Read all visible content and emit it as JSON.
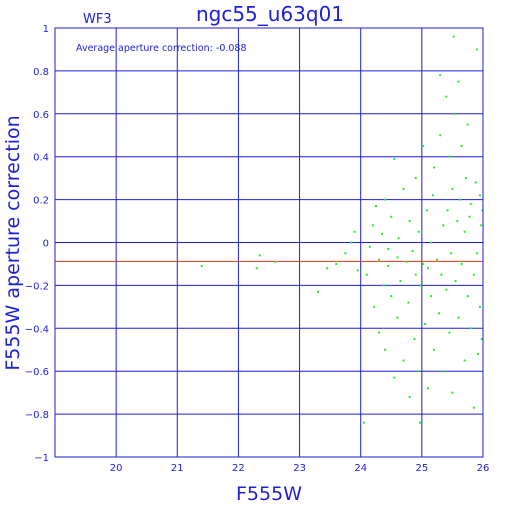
{
  "chart_data": {
    "type": "scatter",
    "title": "ngc55_u63q01",
    "corner_label": "WF3",
    "annotation": "Average aperture correction: -0.088",
    "xlabel": "F555W",
    "ylabel": "F555W aperture correction",
    "xlim": [
      19,
      26
    ],
    "ylim": [
      -1,
      1
    ],
    "x_ticks": [
      20,
      21,
      22,
      23,
      24,
      25,
      26
    ],
    "y_ticks": [
      1,
      0.8,
      0.6,
      0.4,
      0.2,
      0,
      -0.2,
      -0.4,
      -0.6,
      -0.8,
      -1
    ],
    "x_tick_labels": [
      "20",
      "21",
      "22",
      "23",
      "24",
      "25",
      "26"
    ],
    "y_tick_labels": [
      "1",
      "0.8",
      "0.6",
      "0.4",
      "0.2",
      "0",
      "−0.2",
      "−0.4",
      "−0.6",
      "−0.8",
      "−1"
    ],
    "grid": true,
    "reference_line": {
      "y": -0.088
    },
    "series": [
      {
        "points": [
          [
            21.4,
            -0.11
          ],
          [
            22.35,
            -0.06
          ],
          [
            22.6,
            -0.09
          ],
          [
            22.3,
            -0.12
          ],
          [
            23.3,
            -0.23
          ],
          [
            23.45,
            -0.12
          ],
          [
            23.6,
            -0.1
          ],
          [
            23.75,
            -0.05
          ],
          [
            23.85,
            0.0
          ],
          [
            23.95,
            -0.13
          ],
          [
            23.9,
            0.05
          ],
          [
            24.05,
            -0.84
          ],
          [
            24.1,
            -0.15
          ],
          [
            24.15,
            -0.02
          ],
          [
            24.2,
            0.08
          ],
          [
            24.22,
            -0.3
          ],
          [
            24.25,
            0.17
          ],
          [
            24.3,
            -0.42
          ],
          [
            24.3,
            -0.08
          ],
          [
            24.35,
            0.04
          ],
          [
            24.38,
            -0.2
          ],
          [
            24.4,
            -0.5
          ],
          [
            24.4,
            0.2
          ],
          [
            24.45,
            -0.11
          ],
          [
            24.45,
            -0.03
          ],
          [
            24.5,
            0.12
          ],
          [
            24.5,
            -0.25
          ],
          [
            24.55,
            -0.63
          ],
          [
            24.55,
            0.39
          ],
          [
            24.6,
            -0.07
          ],
          [
            24.6,
            -0.35
          ],
          [
            24.62,
            0.02
          ],
          [
            24.65,
            -0.18
          ],
          [
            24.7,
            0.25
          ],
          [
            24.7,
            -0.55
          ],
          [
            24.75,
            -0.09
          ],
          [
            24.78,
            -0.28
          ],
          [
            24.8,
            0.1
          ],
          [
            24.8,
            -0.72
          ],
          [
            24.85,
            -0.04
          ],
          [
            24.88,
            -0.45
          ],
          [
            24.9,
            0.3
          ],
          [
            24.9,
            -0.15
          ],
          [
            24.95,
            -0.6
          ],
          [
            24.95,
            0.05
          ],
          [
            24.97,
            -0.84
          ],
          [
            24.98,
            -0.2
          ],
          [
            25.02,
            0.45
          ],
          [
            25.02,
            -0.1
          ],
          [
            25.05,
            -0.38
          ],
          [
            25.08,
            0.15
          ],
          [
            25.1,
            -0.12
          ],
          [
            25.1,
            -0.68
          ],
          [
            25.15,
            0.0
          ],
          [
            25.15,
            -0.25
          ],
          [
            25.18,
            0.22
          ],
          [
            25.2,
            -0.5
          ],
          [
            25.2,
            0.35
          ],
          [
            25.25,
            -0.08
          ],
          [
            25.28,
            -0.33
          ],
          [
            25.3,
            0.5
          ],
          [
            25.3,
            0.78
          ],
          [
            25.32,
            -0.15
          ],
          [
            25.35,
            0.08
          ],
          [
            25.35,
            -0.6
          ],
          [
            25.4,
            0.68
          ],
          [
            25.4,
            -0.22
          ],
          [
            25.42,
            0.15
          ],
          [
            25.45,
            0.4
          ],
          [
            25.45,
            -0.42
          ],
          [
            25.48,
            -0.05
          ],
          [
            25.5,
            0.25
          ],
          [
            25.5,
            -0.7
          ],
          [
            25.52,
            0.96
          ],
          [
            25.55,
            -0.18
          ],
          [
            25.55,
            0.6
          ],
          [
            25.58,
            0.1
          ],
          [
            25.6,
            0.75
          ],
          [
            25.6,
            -0.35
          ],
          [
            25.62,
            0.2
          ],
          [
            25.65,
            -0.1
          ],
          [
            25.65,
            0.45
          ],
          [
            25.7,
            -0.55
          ],
          [
            25.7,
            0.05
          ],
          [
            25.72,
            0.3
          ],
          [
            25.75,
            -0.25
          ],
          [
            25.75,
            0.55
          ],
          [
            25.78,
            0.12
          ],
          [
            25.8,
            -0.4
          ],
          [
            25.8,
            0.18
          ],
          [
            25.85,
            -0.15
          ],
          [
            25.85,
            -0.77
          ],
          [
            25.88,
            0.28
          ],
          [
            25.9,
            0.9
          ],
          [
            25.9,
            -0.05
          ],
          [
            25.92,
            -0.52
          ],
          [
            25.95,
            0.22
          ],
          [
            25.95,
            -0.3
          ],
          [
            25.97,
            0.08
          ],
          [
            25.98,
            -0.45
          ],
          [
            25.99,
            0.15
          ]
        ]
      }
    ],
    "colors": {
      "axes": "#1f1fd6",
      "grid": "#1f1fd6",
      "text": "#1f1fd6",
      "points": "#22ee22",
      "reference_line": "#d23a1e"
    }
  }
}
